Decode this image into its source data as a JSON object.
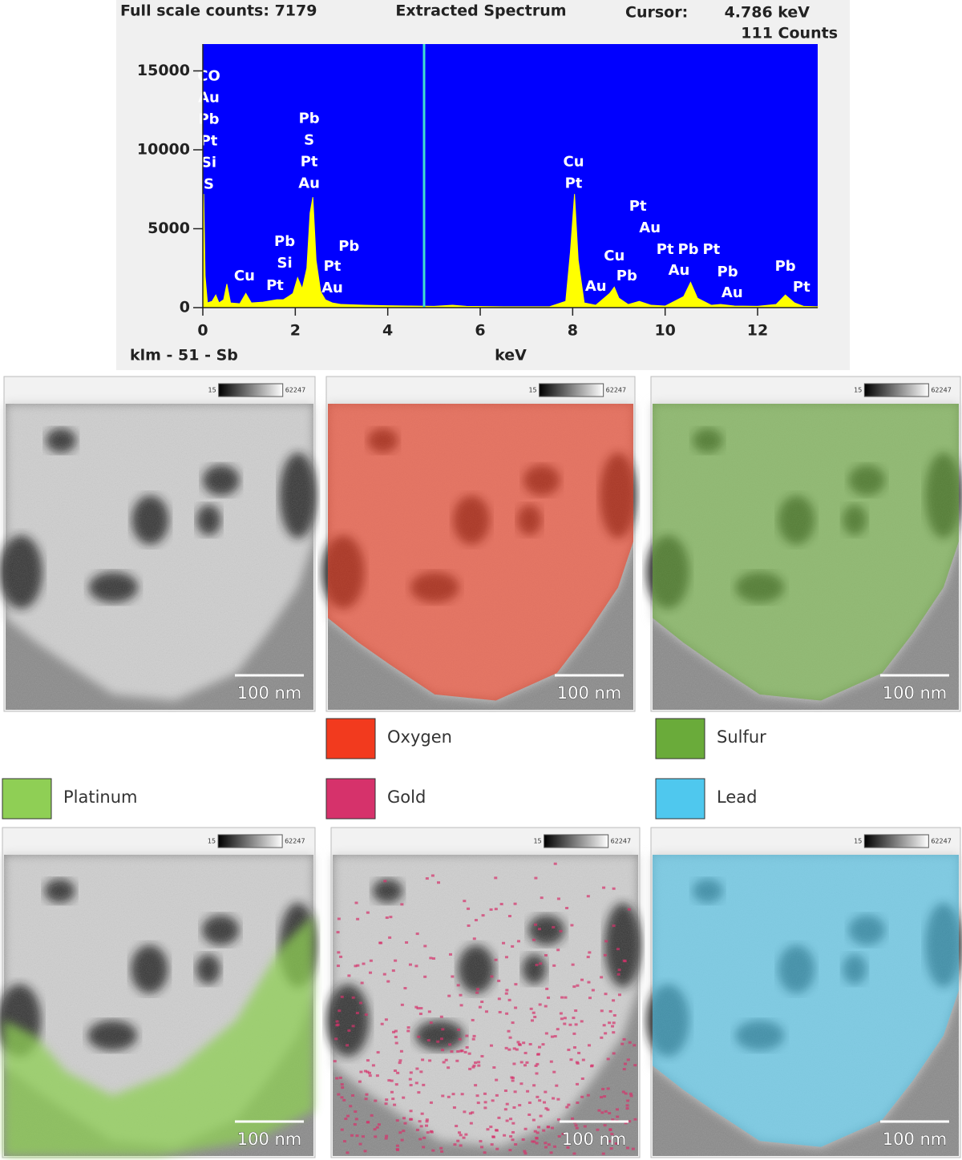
{
  "chart_data": {
    "type": "area",
    "title": "Extracted Spectrum",
    "full_scale": "Full scale counts: 7179",
    "cursor_title": "Cursor:",
    "cursor": {
      "value": 4.786,
      "label": "4.786 keV"
    },
    "cursor_counts": {
      "value": 111,
      "label": "111 Counts"
    },
    "sample_label": "klm - 51 - Sb",
    "xlabel": "keV",
    "xlim": [
      0,
      13.3
    ],
    "ylim": [
      0,
      16700
    ],
    "xticks": [
      0,
      2,
      4,
      6,
      8,
      10,
      12
    ],
    "yticks": [
      0,
      5000,
      10000,
      15000
    ],
    "background": "#0000ff",
    "cursor_color": "#40e0d0",
    "x": [
      0,
      0.02,
      0.05,
      0.1,
      0.2,
      0.28,
      0.35,
      0.45,
      0.52,
      0.6,
      0.8,
      0.93,
      1.05,
      1.3,
      1.6,
      1.74,
      1.85,
      1.95,
      2.05,
      2.15,
      2.25,
      2.32,
      2.38,
      2.45,
      2.55,
      2.65,
      2.8,
      3.0,
      3.5,
      4.0,
      4.5,
      5.0,
      5.4,
      5.7,
      6.5,
      7.5,
      7.85,
      7.95,
      8.04,
      8.12,
      8.25,
      8.5,
      8.8,
      8.9,
      9.0,
      9.2,
      9.44,
      9.7,
      10.0,
      10.4,
      10.55,
      10.7,
      11.0,
      11.2,
      11.5,
      12.0,
      12.4,
      12.6,
      12.8,
      13.0,
      13.3
    ],
    "series": [
      {
        "color": "#ffff00",
        "values": [
          200,
          7200,
          2000,
          300,
          400,
          800,
          300,
          500,
          1500,
          300,
          250,
          900,
          300,
          350,
          500,
          500,
          700,
          900,
          1900,
          1200,
          2500,
          6000,
          7000,
          3000,
          1000,
          500,
          300,
          200,
          150,
          120,
          100,
          80,
          150,
          80,
          60,
          60,
          400,
          3500,
          7200,
          3000,
          300,
          150,
          900,
          1300,
          600,
          200,
          400,
          150,
          100,
          700,
          1600,
          600,
          150,
          200,
          100,
          80,
          200,
          800,
          300,
          80,
          60
        ]
      }
    ],
    "annotations": [
      {
        "x": 0.13,
        "y": 14650,
        "texts": [
          "CO",
          "Au",
          "Pb",
          "Pt",
          "Si",
          "S"
        ]
      },
      {
        "x": 2.3,
        "y": 11960,
        "texts": [
          "Pb",
          "S",
          "Pt",
          "Au"
        ]
      },
      {
        "x": 0.9,
        "y": 1980,
        "texts": [
          "Cu"
        ]
      },
      {
        "x": 1.77,
        "y": 4160,
        "texts": [
          "Pb",
          "Si"
        ]
      },
      {
        "x": 1.56,
        "y": 1370,
        "texts": [
          "Pt"
        ]
      },
      {
        "x": 3.16,
        "y": 3850,
        "texts": [
          "Pb"
        ]
      },
      {
        "x": 2.8,
        "y": 2580,
        "texts": [
          "Pt",
          "Au"
        ]
      },
      {
        "x": 8.02,
        "y": 9220,
        "texts": [
          "Cu",
          "Pt"
        ]
      },
      {
        "x": 8.5,
        "y": 1320,
        "texts": [
          "Au"
        ]
      },
      {
        "x": 8.9,
        "y": 3240,
        "texts": [
          "Cu"
        ]
      },
      {
        "x": 9.17,
        "y": 1980,
        "texts": [
          "Pb"
        ]
      },
      {
        "x": 9.41,
        "y": 6390,
        "texts": [
          "Pt"
        ]
      },
      {
        "x": 9.67,
        "y": 5020,
        "texts": [
          "Au"
        ]
      },
      {
        "x": 10.0,
        "y": 3650,
        "texts": [
          "Pt"
        ]
      },
      {
        "x": 10.5,
        "y": 3650,
        "texts": [
          "Pb"
        ]
      },
      {
        "x": 11.0,
        "y": 3650,
        "texts": [
          "Pt"
        ]
      },
      {
        "x": 10.3,
        "y": 2330,
        "texts": [
          "Au"
        ]
      },
      {
        "x": 11.35,
        "y": 2230,
        "texts": [
          "Pb"
        ]
      },
      {
        "x": 11.45,
        "y": 910,
        "texts": [
          "Au"
        ]
      },
      {
        "x": 12.6,
        "y": 2580,
        "texts": [
          "Pb"
        ]
      },
      {
        "x": 12.95,
        "y": 1270,
        "texts": [
          "Pt"
        ]
      }
    ]
  },
  "maps": {
    "colorbar": {
      "min": 15,
      "max": 62247
    },
    "scale_bar": "100 nm",
    "legend": [
      {
        "name": "Oxygen",
        "color": "#f23a1e"
      },
      {
        "name": "Sulfur",
        "color": "#6aab3a"
      },
      {
        "name": "Platinum",
        "color": "#8fcf55"
      },
      {
        "name": "Gold",
        "color": "#d6326b"
      },
      {
        "name": "Lead",
        "color": "#4fc8ee"
      }
    ]
  }
}
